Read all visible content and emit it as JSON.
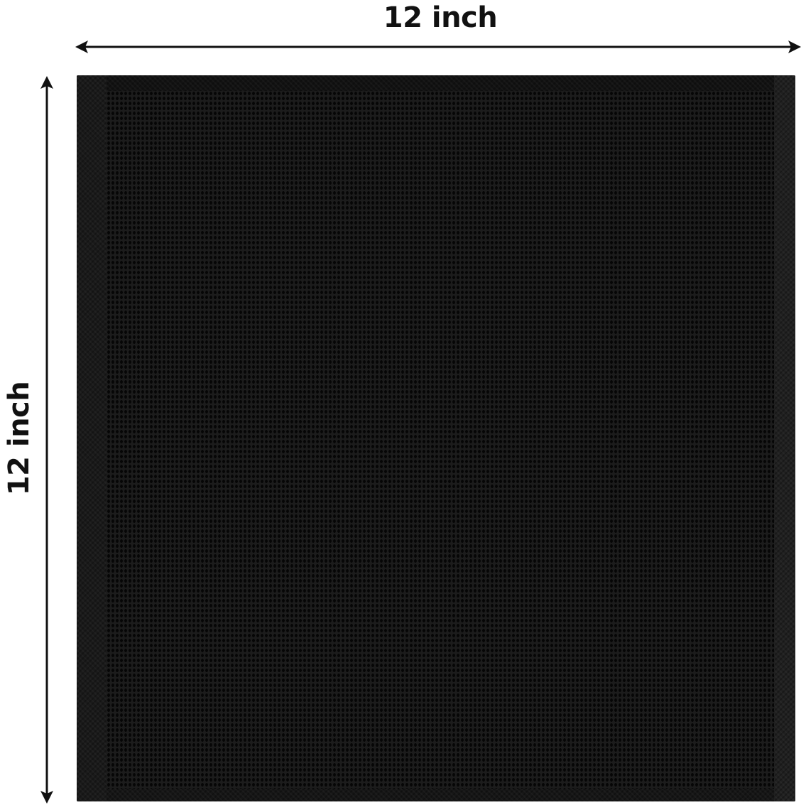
{
  "dimensions": {
    "width_label": "12 inch",
    "height_label": "12 inch"
  },
  "product": {
    "color": "#151515",
    "description_icon": "mesh-cloth-square"
  }
}
